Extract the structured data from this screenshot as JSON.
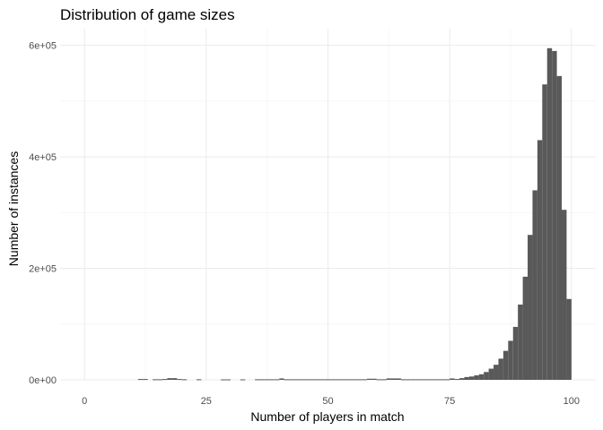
{
  "chart_data": {
    "type": "bar",
    "title": "Distribution of game sizes",
    "xlabel": "Number of players in match",
    "ylabel": "Number of instances",
    "xlim": [
      -5,
      105
    ],
    "ylim": [
      0,
      630000
    ],
    "xticks": [
      0,
      25,
      50,
      75,
      100
    ],
    "xtick_labels": [
      "0",
      "25",
      "50",
      "75",
      "100"
    ],
    "yticks": [
      0,
      200000,
      400000,
      600000
    ],
    "ytick_labels": [
      "0e+00",
      "2e+05",
      "4e+05",
      "6e+05"
    ],
    "grid": true,
    "bar_color": "#595959",
    "bin_width": 1,
    "bins": [
      {
        "x": 11,
        "value": 1500
      },
      {
        "x": 12,
        "value": 1500
      },
      {
        "x": 14,
        "value": 1000
      },
      {
        "x": 15,
        "value": 1000
      },
      {
        "x": 16,
        "value": 1500
      },
      {
        "x": 17,
        "value": 3000
      },
      {
        "x": 18,
        "value": 3000
      },
      {
        "x": 19,
        "value": 1500
      },
      {
        "x": 20,
        "value": 1000
      },
      {
        "x": 23,
        "value": 1000
      },
      {
        "x": 28,
        "value": 800
      },
      {
        "x": 29,
        "value": 800
      },
      {
        "x": 32,
        "value": 800
      },
      {
        "x": 35,
        "value": 1000
      },
      {
        "x": 36,
        "value": 1000
      },
      {
        "x": 37,
        "value": 1000
      },
      {
        "x": 38,
        "value": 1000
      },
      {
        "x": 39,
        "value": 1000
      },
      {
        "x": 40,
        "value": 2500
      },
      {
        "x": 41,
        "value": 1000
      },
      {
        "x": 42,
        "value": 1000
      },
      {
        "x": 43,
        "value": 1000
      },
      {
        "x": 44,
        "value": 1000
      },
      {
        "x": 45,
        "value": 1000
      },
      {
        "x": 46,
        "value": 1000
      },
      {
        "x": 47,
        "value": 1000
      },
      {
        "x": 48,
        "value": 1000
      },
      {
        "x": 49,
        "value": 1000
      },
      {
        "x": 50,
        "value": 1000
      },
      {
        "x": 51,
        "value": 1000
      },
      {
        "x": 52,
        "value": 1000
      },
      {
        "x": 53,
        "value": 1000
      },
      {
        "x": 54,
        "value": 1000
      },
      {
        "x": 55,
        "value": 1000
      },
      {
        "x": 56,
        "value": 1000
      },
      {
        "x": 57,
        "value": 1000
      },
      {
        "x": 58,
        "value": 2000
      },
      {
        "x": 59,
        "value": 2000
      },
      {
        "x": 60,
        "value": 1000
      },
      {
        "x": 61,
        "value": 1000
      },
      {
        "x": 62,
        "value": 2500
      },
      {
        "x": 63,
        "value": 2500
      },
      {
        "x": 64,
        "value": 2500
      },
      {
        "x": 65,
        "value": 1000
      },
      {
        "x": 66,
        "value": 1000
      },
      {
        "x": 67,
        "value": 1000
      },
      {
        "x": 68,
        "value": 1000
      },
      {
        "x": 69,
        "value": 1000
      },
      {
        "x": 70,
        "value": 1000
      },
      {
        "x": 71,
        "value": 1000
      },
      {
        "x": 72,
        "value": 1000
      },
      {
        "x": 73,
        "value": 1000
      },
      {
        "x": 74,
        "value": 1000
      },
      {
        "x": 75,
        "value": 2500
      },
      {
        "x": 76,
        "value": 1500
      },
      {
        "x": 77,
        "value": 3000
      },
      {
        "x": 78,
        "value": 5000
      },
      {
        "x": 79,
        "value": 6000
      },
      {
        "x": 80,
        "value": 8000
      },
      {
        "x": 81,
        "value": 10000
      },
      {
        "x": 82,
        "value": 14000
      },
      {
        "x": 83,
        "value": 20000
      },
      {
        "x": 84,
        "value": 27000
      },
      {
        "x": 85,
        "value": 38000
      },
      {
        "x": 86,
        "value": 52000
      },
      {
        "x": 87,
        "value": 70000
      },
      {
        "x": 88,
        "value": 95000
      },
      {
        "x": 89,
        "value": 135000
      },
      {
        "x": 90,
        "value": 185000
      },
      {
        "x": 91,
        "value": 260000
      },
      {
        "x": 92,
        "value": 340000
      },
      {
        "x": 93,
        "value": 430000
      },
      {
        "x": 94,
        "value": 530000
      },
      {
        "x": 95,
        "value": 595000
      },
      {
        "x": 96,
        "value": 590000
      },
      {
        "x": 97,
        "value": 545000
      },
      {
        "x": 98,
        "value": 305000
      },
      {
        "x": 99,
        "value": 145000
      }
    ]
  }
}
